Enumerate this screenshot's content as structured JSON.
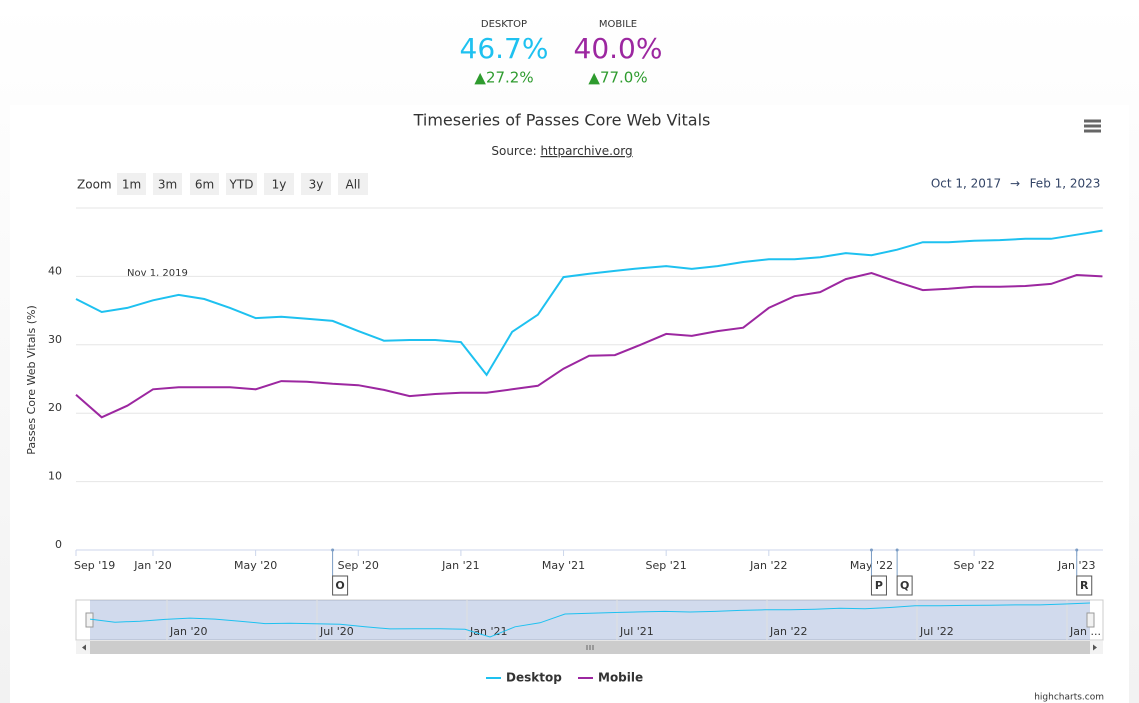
{
  "summary": {
    "desktop": {
      "label": "DESKTOP",
      "value": "46.7%",
      "change": "▲27.2%"
    },
    "mobile": {
      "label": "MOBILE",
      "value": "40.0%",
      "change": "▲77.0%"
    }
  },
  "toolbar": {
    "zoom_label": "Zoom",
    "buttons": [
      "1m",
      "3m",
      "6m",
      "YTD",
      "1y",
      "3y",
      "All"
    ],
    "range_from": "Oct 1, 2017",
    "range_arrow": "→",
    "range_to": "Feb 1, 2023"
  },
  "chart_data": {
    "type": "line",
    "title": "Timeseries of Passes Core Web Vitals",
    "source_prefix": "Source: ",
    "source_link": "httparchive.org",
    "y_label": "Passes Core Web Vitals (%)",
    "annotation": "Nov 1, 2019",
    "categories": [
      "Sep '19",
      null,
      null,
      "Jan '20",
      null,
      null,
      null,
      "May '20",
      null,
      null,
      null,
      "Sep '20",
      null,
      null,
      null,
      "Jan '21",
      null,
      null,
      null,
      "May '21",
      null,
      null,
      null,
      "Sep '21",
      null,
      null,
      null,
      "Jan '22",
      null,
      null,
      null,
      "May '22",
      null,
      null,
      null,
      "Sep '22",
      null,
      null,
      null,
      "Jan '23",
      null
    ],
    "series": [
      {
        "name": "Desktop",
        "color": "#1ec1f0",
        "values": [
          36.7,
          34.8,
          35.4,
          36.5,
          37.3,
          36.7,
          35.4,
          33.9,
          34.1,
          33.8,
          33.5,
          32.0,
          30.6,
          30.7,
          30.7,
          30.4,
          25.6,
          31.9,
          34.4,
          39.9,
          40.4,
          40.8,
          41.2,
          41.5,
          41.1,
          41.5,
          42.1,
          42.5,
          42.5,
          42.8,
          43.4,
          43.1,
          43.9,
          45.0,
          45.0,
          45.2,
          45.3,
          45.5,
          45.5,
          46.1,
          46.7
        ]
      },
      {
        "name": "Mobile",
        "color": "#9c27a0",
        "values": [
          22.7,
          19.4,
          21.1,
          23.5,
          23.8,
          23.8,
          23.8,
          23.5,
          24.7,
          24.6,
          24.3,
          24.1,
          23.4,
          22.5,
          22.8,
          23.0,
          23.0,
          23.5,
          24.0,
          26.5,
          28.4,
          28.5,
          30.0,
          31.6,
          31.3,
          32.0,
          32.5,
          35.4,
          37.1,
          37.7,
          39.6,
          40.5,
          39.2,
          38.0,
          38.2,
          38.5,
          38.5,
          38.6,
          38.9,
          40.2,
          40.0
        ]
      }
    ],
    "ylim": [
      0,
      50
    ],
    "yticks": [
      0,
      10,
      20,
      30,
      40
    ],
    "grid": true,
    "flags": [
      {
        "label": "O",
        "x": 10
      },
      {
        "label": "P",
        "x": 31
      },
      {
        "label": "Q",
        "x": 32
      },
      {
        "label": "R",
        "x": 39
      }
    ],
    "navigator_labels": [
      "Jan '20",
      "Jul '20",
      "Jan '21",
      "Jul '21",
      "Jan '22",
      "Jul '22",
      "Jan ..."
    ],
    "credits": "highcharts.com"
  }
}
